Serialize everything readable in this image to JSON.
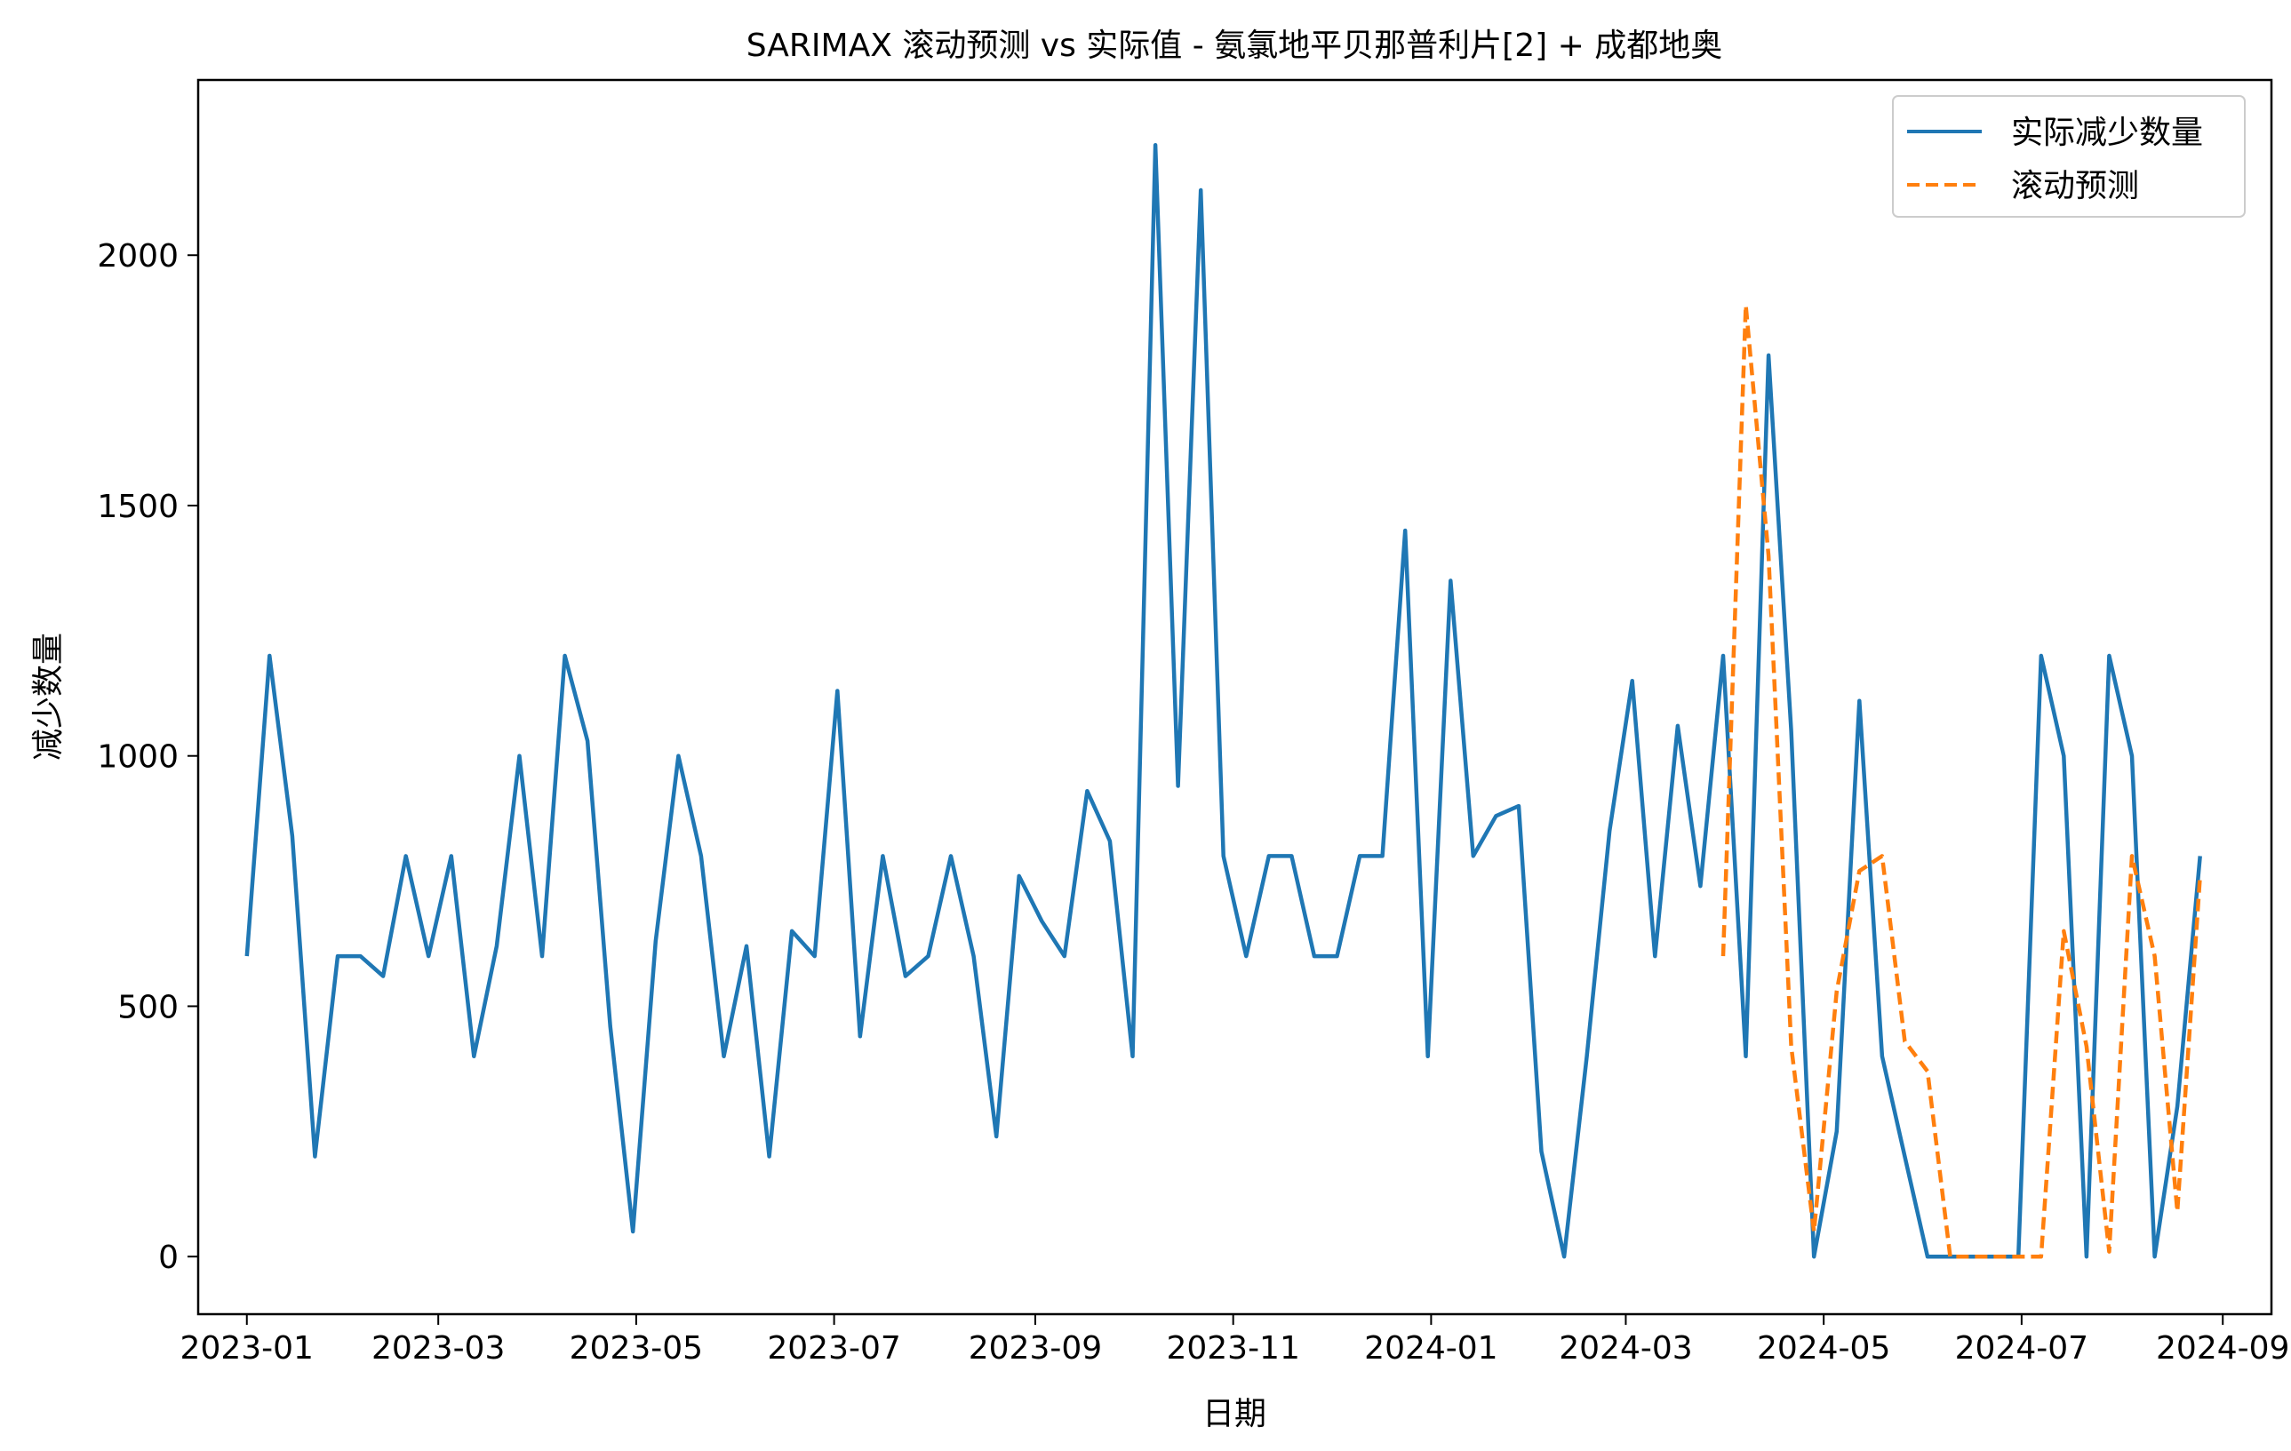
{
  "chart_data": {
    "type": "line",
    "title": "SARIMAX 滚动预测 vs 实际值 - 氨氯地平贝那普利片[2] + 成都地奥",
    "xlabel": "日期",
    "ylabel": "减少数量",
    "x_axis_type": "date",
    "xlim": [
      "2022-12-17",
      "2024-09-16"
    ],
    "ylim": [
      -115,
      2350
    ],
    "x_ticks": [
      "2023-01",
      "2023-03",
      "2023-05",
      "2023-07",
      "2023-09",
      "2023-11",
      "2024-01",
      "2024-03",
      "2024-05",
      "2024-07",
      "2024-09"
    ],
    "y_ticks": [
      0,
      500,
      1000,
      1500,
      2000
    ],
    "grid": false,
    "legend_position": "top-right",
    "series": [
      {
        "name": "实际减少数量",
        "color": "#1f77b4",
        "line_style": "solid",
        "x": [
          "2023-01-01",
          "2023-01-08",
          "2023-01-15",
          "2023-01-22",
          "2023-01-29",
          "2023-02-05",
          "2023-02-12",
          "2023-02-19",
          "2023-02-26",
          "2023-03-05",
          "2023-03-12",
          "2023-03-19",
          "2023-03-26",
          "2023-04-02",
          "2023-04-09",
          "2023-04-16",
          "2023-04-23",
          "2023-04-30",
          "2023-05-07",
          "2023-05-14",
          "2023-05-21",
          "2023-05-28",
          "2023-06-04",
          "2023-06-11",
          "2023-06-18",
          "2023-06-25",
          "2023-07-02",
          "2023-07-09",
          "2023-07-16",
          "2023-07-23",
          "2023-07-30",
          "2023-08-06",
          "2023-08-13",
          "2023-08-20",
          "2023-08-27",
          "2023-09-03",
          "2023-09-10",
          "2023-09-17",
          "2023-09-24",
          "2023-10-01",
          "2023-10-08",
          "2023-10-15",
          "2023-10-22",
          "2023-10-29",
          "2023-11-05",
          "2023-11-12",
          "2023-11-19",
          "2023-11-26",
          "2023-12-03",
          "2023-12-10",
          "2023-12-17",
          "2023-12-24",
          "2023-12-31",
          "2024-01-07",
          "2024-01-14",
          "2024-01-21",
          "2024-01-28",
          "2024-02-04",
          "2024-02-11",
          "2024-02-18",
          "2024-02-25",
          "2024-03-03",
          "2024-03-10",
          "2024-03-17",
          "2024-03-24",
          "2024-03-31",
          "2024-04-07",
          "2024-04-14",
          "2024-04-21",
          "2024-04-28",
          "2024-05-05",
          "2024-05-12",
          "2024-05-19",
          "2024-05-26",
          "2024-06-02",
          "2024-06-09",
          "2024-06-16",
          "2024-06-23",
          "2024-06-30",
          "2024-07-07",
          "2024-07-14",
          "2024-07-21",
          "2024-07-28",
          "2024-08-04",
          "2024-08-11",
          "2024-08-18",
          "2024-08-25"
        ],
        "values": [
          600,
          1200,
          840,
          200,
          600,
          600,
          560,
          800,
          600,
          800,
          400,
          620,
          1000,
          600,
          1200,
          1030,
          460,
          50,
          630,
          1000,
          800,
          400,
          620,
          200,
          650,
          600,
          1130,
          440,
          800,
          560,
          600,
          800,
          600,
          240,
          760,
          670,
          600,
          930,
          830,
          400,
          2220,
          940,
          2130,
          800,
          600,
          800,
          800,
          600,
          600,
          800,
          800,
          1450,
          400,
          1350,
          800,
          880,
          900,
          210,
          0,
          400,
          850,
          1150,
          600,
          1060,
          740,
          1200,
          400,
          1800,
          1050,
          0,
          250,
          1110,
          400,
          200,
          0,
          0,
          0,
          0,
          0,
          1200,
          1000,
          0,
          1200,
          1000,
          0,
          300,
          800
        ]
      },
      {
        "name": "滚动预测",
        "color": "#ff7f0e",
        "line_style": "dashed",
        "x": [
          "2024-03-31",
          "2024-04-07",
          "2024-04-14",
          "2024-04-21",
          "2024-04-28",
          "2024-05-05",
          "2024-05-12",
          "2024-05-19",
          "2024-05-26",
          "2024-06-02",
          "2024-06-09",
          "2024-06-16",
          "2024-06-23",
          "2024-06-30",
          "2024-07-07",
          "2024-07-14",
          "2024-07-21",
          "2024-07-28",
          "2024-08-04",
          "2024-08-11",
          "2024-08-18",
          "2024-08-25"
        ],
        "values": [
          600,
          1900,
          1400,
          420,
          50,
          530,
          770,
          800,
          430,
          370,
          0,
          0,
          0,
          0,
          0,
          650,
          420,
          10,
          800,
          600,
          90,
          760
        ]
      }
    ]
  }
}
